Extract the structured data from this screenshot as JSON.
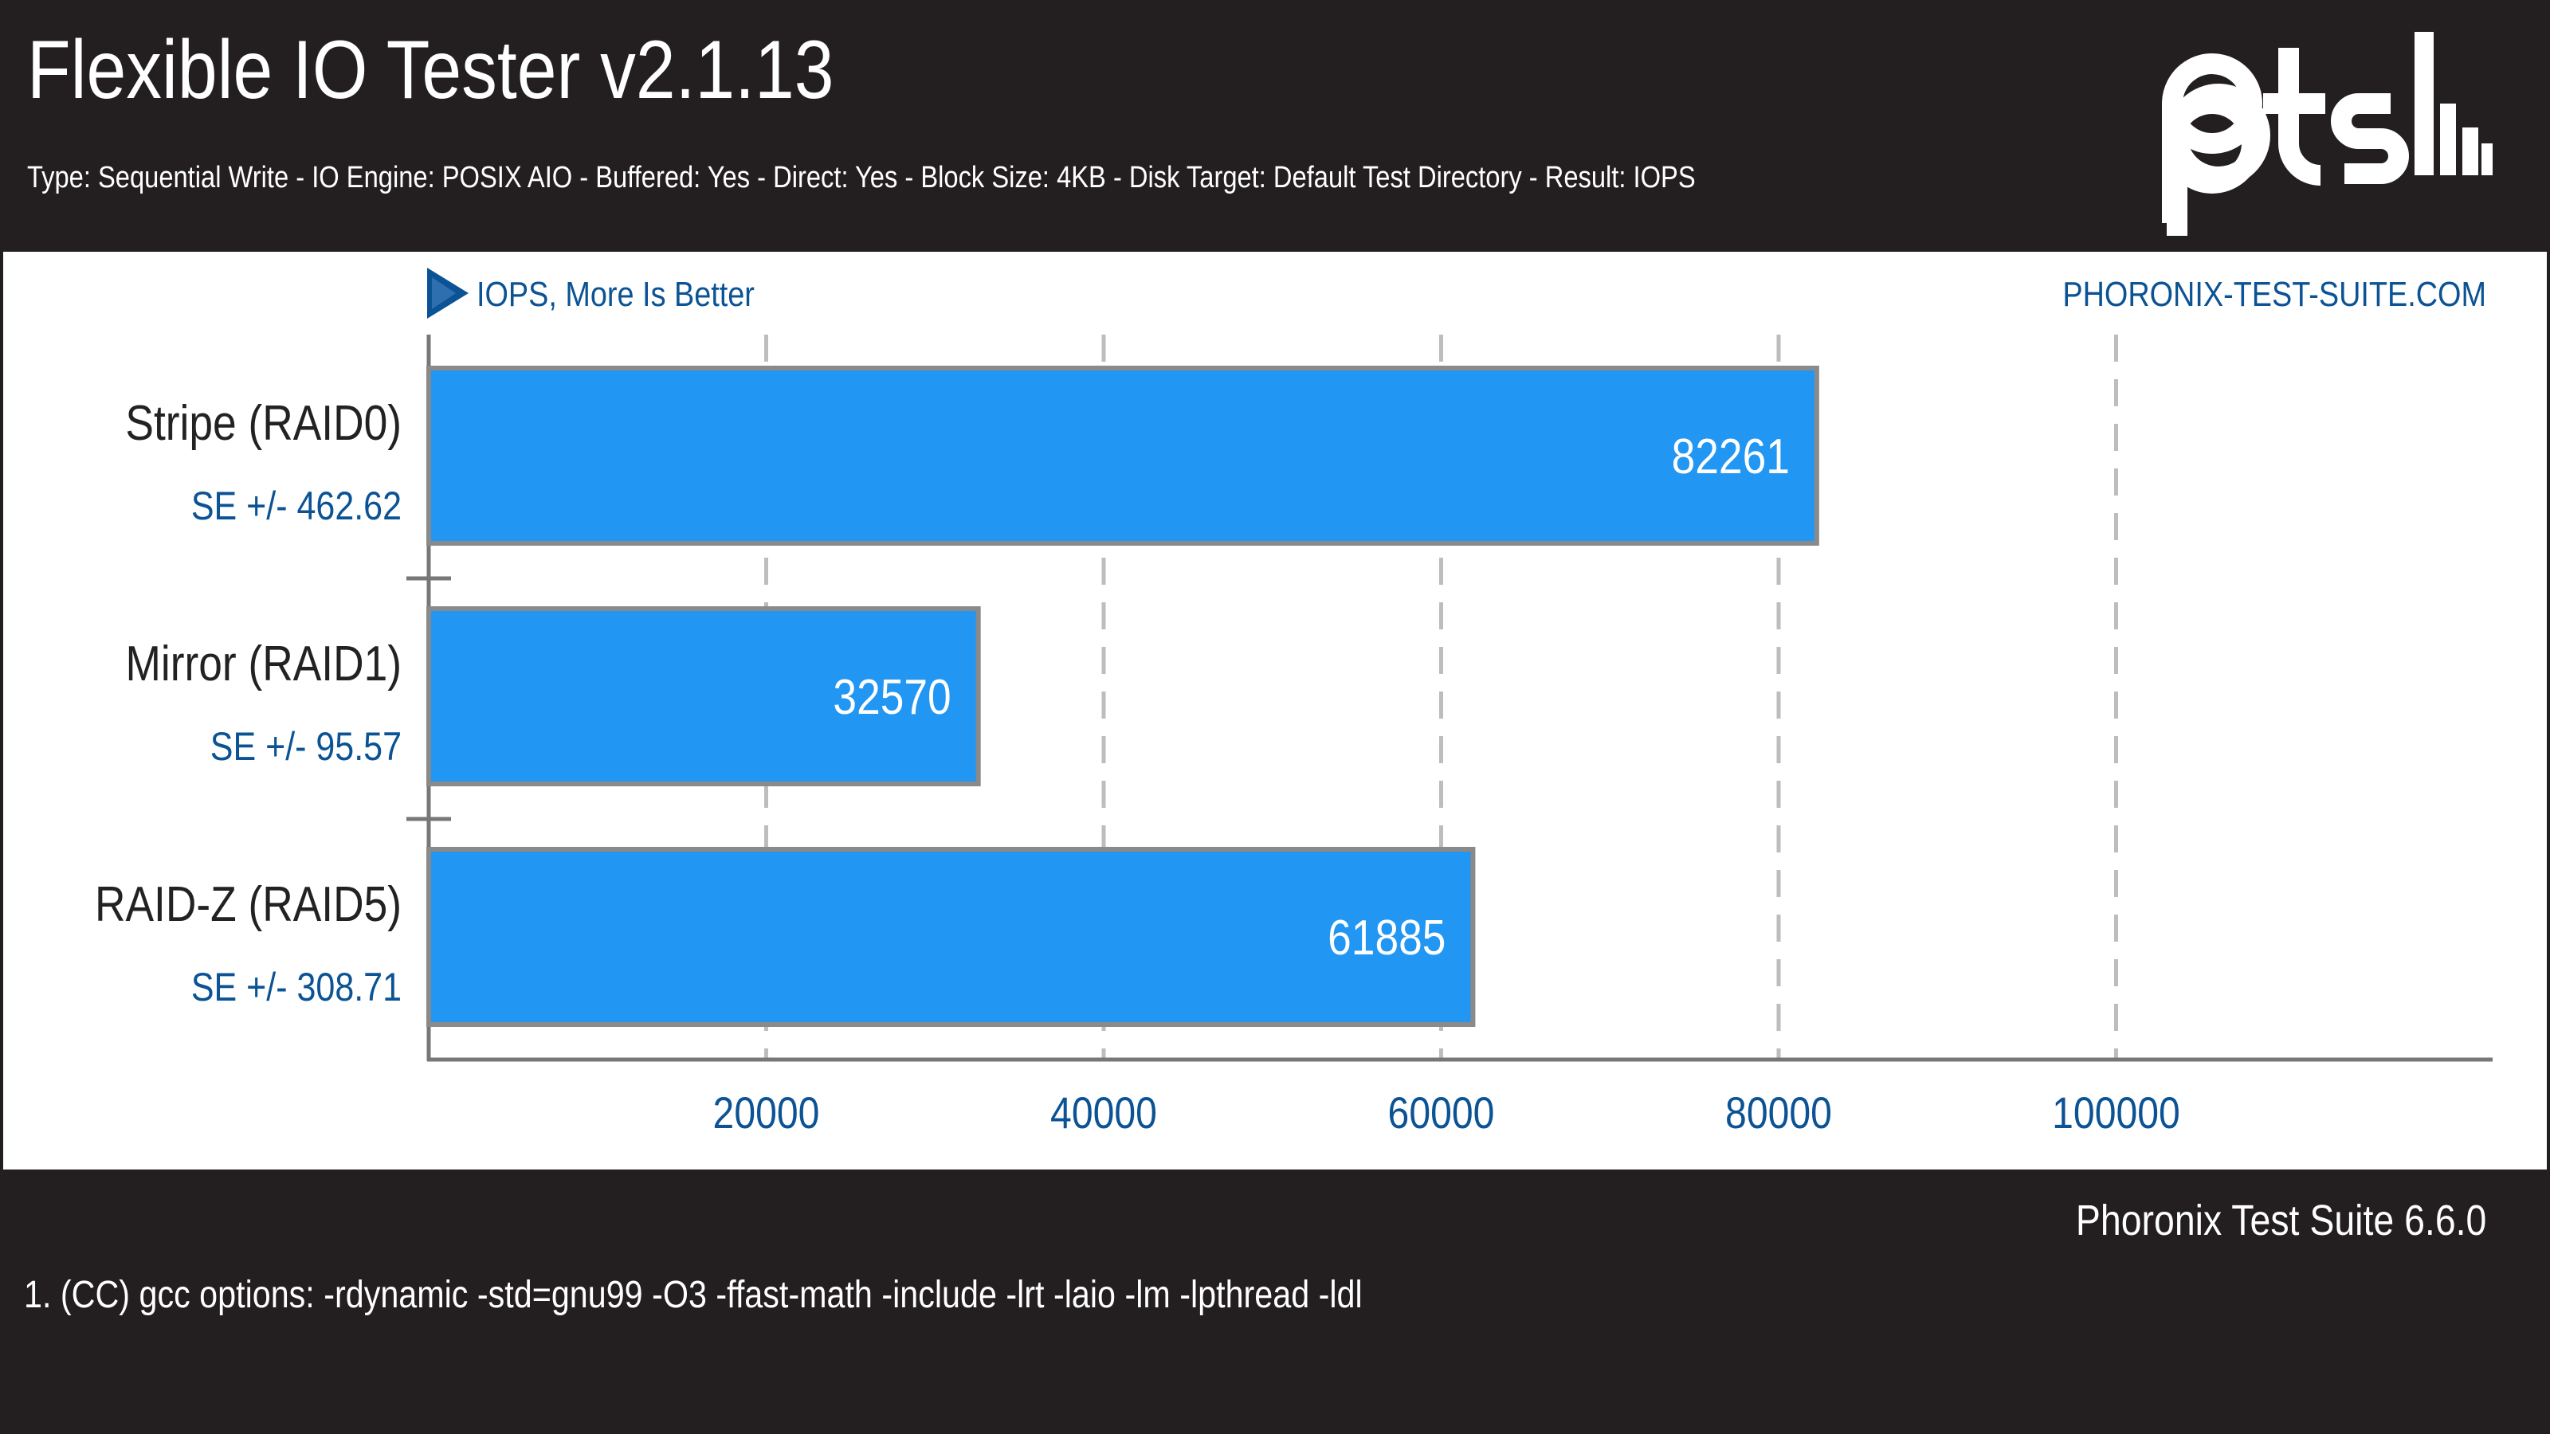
{
  "header": {
    "title": "Flexible IO Tester v2.1.13",
    "subtitle": "Type: Sequential Write - IO Engine: POSIX AIO - Buffered: Yes - Direct: Yes - Block Size: 4KB - Disk Target: Default Test Directory - Result: IOPS",
    "logo": "pts-logo"
  },
  "chart_data": {
    "type": "bar",
    "orientation": "horizontal",
    "title": "Flexible IO Tester v2.1.13",
    "subtitle": "Type: Sequential Write - IO Engine: POSIX AIO - Buffered: Yes - Direct: Yes - Block Size: 4KB - Disk Target: Default Test Directory - Result: IOPS",
    "measure_label": "IOPS, More Is Better",
    "watermark": "PHORONIX-TEST-SUITE.COM",
    "categories": [
      "Stripe (RAID0)",
      "Mirror (RAID1)",
      "RAID-Z (RAID5)"
    ],
    "values": [
      82261,
      32570,
      61885
    ],
    "errors": [
      "SE +/- 462.62",
      "SE +/- 95.57",
      "SE +/- 308.71"
    ],
    "xticks": [
      20000,
      40000,
      60000,
      80000,
      100000
    ],
    "xlim": [
      0,
      120000
    ],
    "grid": true,
    "legend": "none"
  },
  "footer": {
    "version": "Phoronix Test Suite 6.6.0",
    "note": "1. (CC) gcc options: -rdynamic -std=gnu99 -O3 -ffast-math -include -lrt -laio -lm -lpthread -ldl"
  },
  "colors": {
    "background": "#231f20",
    "panel": "#ffffff",
    "bar": "#2196f3",
    "bar_border": "#8a8a8a",
    "accent_text": "#0b5394",
    "grid": "#bdbdbd",
    "axis": "#777777"
  }
}
